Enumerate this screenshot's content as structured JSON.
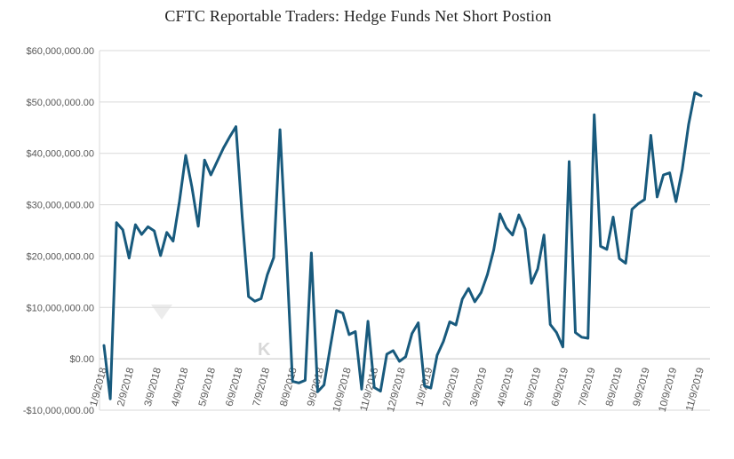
{
  "title": "CFTC Reportable Traders: Hedge Funds Net Short Postion",
  "watermark": {
    "text": "K"
  },
  "chart_data": {
    "type": "line",
    "title": "CFTC Reportable Traders: Hedge Funds Net Short Postion",
    "series_name": "Hedge Funds Net Short Position",
    "legend": "none",
    "grid": "horizontal",
    "grid_color": "#d9d9d9",
    "label_color": "#595959",
    "line_color": "#185a7d",
    "ylim": [
      -10000000,
      60000000
    ],
    "y_tick_interval": 10000000,
    "y_tick_labels": [
      "$60,000,000.00",
      "$50,000,000.00",
      "$40,000,000.00",
      "$30,000,000.00",
      "$20,000,000.00",
      "$10,000,000.00",
      "$0.00",
      "-$10,000,000.00"
    ],
    "x_tick_labels": [
      "1/9/2018",
      "2/9/2018",
      "3/9/2018",
      "4/9/2018",
      "5/9/2018",
      "6/9/2018",
      "7/9/2018",
      "8/9/2018",
      "9/9/2018",
      "10/9/2018",
      "11/9/2018",
      "12/9/2018",
      "1/9/2019",
      "2/9/2019",
      "3/9/2019",
      "4/9/2019",
      "5/9/2019",
      "6/9/2019",
      "7/9/2019",
      "8/9/2019",
      "9/9/2019",
      "10/9/2019",
      "11/9/2019"
    ],
    "x": [
      "1/9/2018",
      "1/16/2018",
      "1/23/2018",
      "1/30/2018",
      "2/6/2018",
      "2/13/2018",
      "2/20/2018",
      "2/27/2018",
      "3/6/2018",
      "3/13/2018",
      "3/20/2018",
      "3/27/2018",
      "4/3/2018",
      "4/10/2018",
      "4/17/2018",
      "4/24/2018",
      "5/1/2018",
      "5/8/2018",
      "5/15/2018",
      "5/22/2018",
      "5/29/2018",
      "6/5/2018",
      "6/12/2018",
      "6/19/2018",
      "6/26/2018",
      "7/3/2018",
      "7/10/2018",
      "7/17/2018",
      "7/24/2018",
      "7/31/2018",
      "8/7/2018",
      "8/14/2018",
      "8/21/2018",
      "8/28/2018",
      "9/4/2018",
      "9/11/2018",
      "9/18/2018",
      "9/25/2018",
      "10/2/2018",
      "10/9/2018",
      "10/16/2018",
      "10/23/2018",
      "10/30/2018",
      "11/6/2018",
      "11/13/2018",
      "11/20/2018",
      "11/27/2018",
      "12/4/2018",
      "12/11/2018",
      "12/18/2018",
      "12/25/2018",
      "1/1/2019",
      "1/8/2019",
      "1/15/2019",
      "1/22/2019",
      "1/29/2019",
      "2/5/2019",
      "2/12/2019",
      "2/19/2019",
      "2/26/2019",
      "3/5/2019",
      "3/12/2019",
      "3/19/2019",
      "3/26/2019",
      "4/2/2019",
      "4/9/2019",
      "4/16/2019",
      "4/23/2019",
      "4/30/2019",
      "5/7/2019",
      "5/14/2019",
      "5/21/2019",
      "5/28/2019",
      "6/4/2019",
      "6/11/2019",
      "6/18/2019",
      "6/25/2019",
      "7/2/2019",
      "7/9/2019",
      "7/16/2019",
      "7/23/2019",
      "7/30/2019",
      "8/6/2019",
      "8/13/2019",
      "8/20/2019",
      "8/27/2019",
      "9/3/2019",
      "9/10/2019",
      "9/17/2019",
      "9/24/2019",
      "10/1/2019",
      "10/8/2019",
      "10/15/2019",
      "10/22/2019",
      "10/29/2019",
      "11/5/2019"
    ],
    "values": [
      2600000,
      -7800000,
      26500000,
      25100000,
      19600000,
      26100000,
      24200000,
      25700000,
      24900000,
      20100000,
      24600000,
      22900000,
      30600000,
      39600000,
      33400000,
      25800000,
      38700000,
      35800000,
      38400000,
      41000000,
      43200000,
      45200000,
      27500000,
      12100000,
      11200000,
      11700000,
      16400000,
      19700000,
      44600000,
      21500000,
      -4400000,
      -4700000,
      -4200000,
      20600000,
      -6400000,
      -5100000,
      2300000,
      9400000,
      8900000,
      4700000,
      5300000,
      -5900000,
      7300000,
      -5600000,
      -6300000,
      900000,
      1600000,
      -500000,
      400000,
      4900000,
      7000000,
      -5300000,
      -5700000,
      700000,
      3400000,
      7200000,
      6600000,
      11600000,
      13700000,
      11100000,
      12900000,
      16400000,
      21200000,
      28200000,
      25500000,
      24100000,
      28000000,
      25300000,
      14700000,
      17500000,
      24100000,
      6700000,
      5100000,
      2300000,
      38400000,
      5100000,
      4200000,
      4000000,
      47500000,
      21900000,
      21300000,
      27600000,
      19500000,
      18600000,
      29100000,
      30200000,
      31000000,
      43500000,
      31500000,
      35800000,
      36200000,
      30600000,
      36900000,
      45600000,
      51800000,
      51200000
    ]
  }
}
